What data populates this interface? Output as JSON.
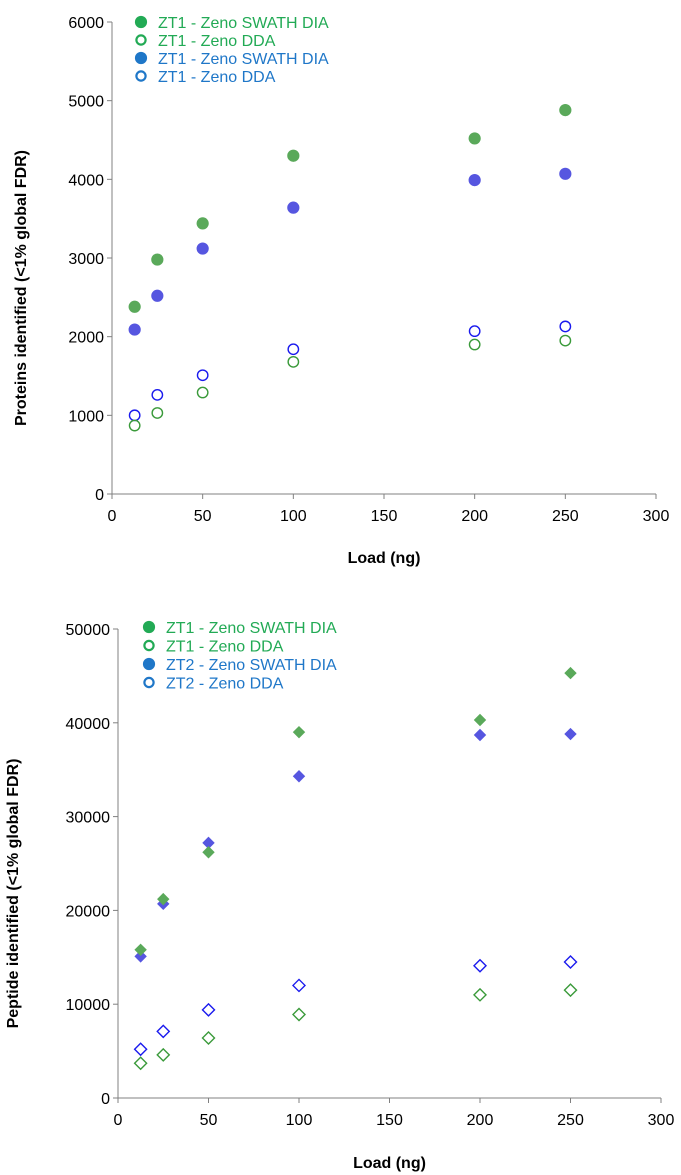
{
  "chart_data": [
    {
      "type": "scatter",
      "title": "",
      "xlabel": "Load (ng)",
      "ylabel": "Proteins identified (<1% global FDR)",
      "xlim": [
        0,
        300
      ],
      "ylim": [
        0,
        6000
      ],
      "x_ticks": [
        "0",
        "50",
        "100",
        "150",
        "200",
        "250",
        "300"
      ],
      "y_ticks": [
        "0",
        "1000",
        "2000",
        "3000",
        "4000",
        "5000",
        "6000"
      ],
      "grid": false,
      "legend_position": "top-left",
      "series": [
        {
          "name": "ZT1 - Zeno SWATH DIA",
          "color": "#5aa95a",
          "label_color": "#22aa55",
          "marker": "filled-circle",
          "x": [
            12.5,
            25,
            50,
            100,
            200,
            250
          ],
          "y": [
            2380,
            2980,
            3440,
            4300,
            4520,
            4880
          ]
        },
        {
          "name": "ZT1 - Zeno DDA",
          "color": "#3a9a3a",
          "label_color": "#22aa55",
          "marker": "open-circle",
          "x": [
            12.5,
            25,
            50,
            100,
            200,
            250
          ],
          "y": [
            870,
            1030,
            1290,
            1680,
            1900,
            1950
          ]
        },
        {
          "name": "ZT1 - Zeno SWATH DIA",
          "color": "#5656e0",
          "label_color": "#1f77c8",
          "marker": "filled-circle",
          "x": [
            12.5,
            25,
            50,
            100,
            200,
            250
          ],
          "y": [
            2090,
            2520,
            3120,
            3640,
            3990,
            4070
          ]
        },
        {
          "name": "ZT1 - Zeno DDA",
          "color": "#1a1aee",
          "label_color": "#1f77c8",
          "marker": "open-circle",
          "x": [
            12.5,
            25,
            50,
            100,
            200,
            250
          ],
          "y": [
            1000,
            1260,
            1510,
            1840,
            2070,
            2130
          ]
        }
      ]
    },
    {
      "type": "scatter",
      "title": "",
      "xlabel": "Load (ng)",
      "ylabel": "Peptide identified (<1% global FDR)",
      "xlim": [
        0,
        300
      ],
      "ylim": [
        0,
        50000
      ],
      "x_ticks": [
        "0",
        "50",
        "100",
        "150",
        "200",
        "250",
        "300"
      ],
      "y_ticks": [
        "0",
        "10000",
        "20000",
        "30000",
        "40000",
        "50000"
      ],
      "grid": false,
      "legend_position": "top-left",
      "series": [
        {
          "name": "ZT1 - Zeno SWATH DIA",
          "color": "#5aa95a",
          "label_color": "#22aa55",
          "marker": "filled-diamond",
          "x": [
            12.5,
            25,
            50,
            100,
            200,
            250
          ],
          "y": [
            15800,
            21200,
            26200,
            39000,
            40300,
            45300
          ]
        },
        {
          "name": "ZT1 - Zeno DDA",
          "color": "#3a9a3a",
          "label_color": "#22aa55",
          "marker": "open-diamond",
          "x": [
            12.5,
            25,
            50,
            100,
            200,
            250
          ],
          "y": [
            3700,
            4600,
            6400,
            8900,
            11000,
            11500
          ]
        },
        {
          "name": "ZT2 - Zeno SWATH DIA",
          "color": "#5656e0",
          "label_color": "#1f77c8",
          "marker": "filled-diamond",
          "x": [
            12.5,
            25,
            50,
            100,
            200,
            250
          ],
          "y": [
            15100,
            20700,
            27200,
            34300,
            38700,
            38800
          ]
        },
        {
          "name": "ZT2 - Zeno DDA",
          "color": "#1a1aee",
          "label_color": "#1f77c8",
          "marker": "open-diamond",
          "x": [
            12.5,
            25,
            50,
            100,
            200,
            250
          ],
          "y": [
            5200,
            7100,
            9400,
            12000,
            14100,
            14500
          ]
        }
      ]
    }
  ]
}
